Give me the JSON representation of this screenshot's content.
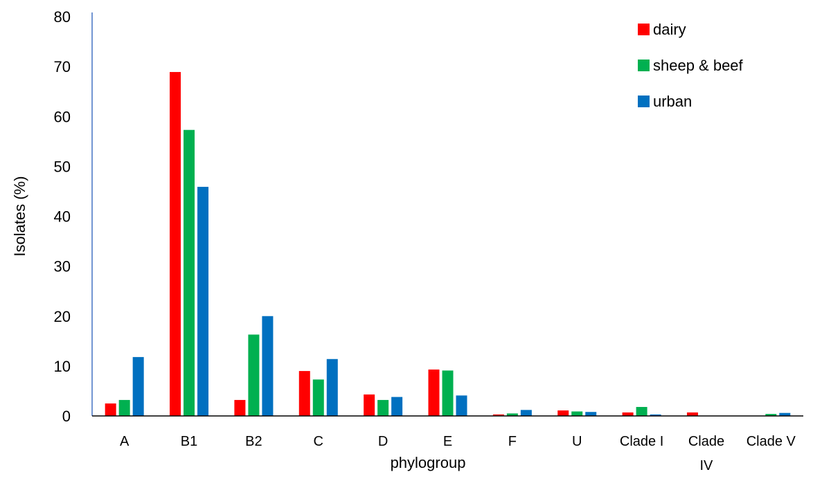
{
  "chart_data": {
    "type": "bar",
    "title": "",
    "xlabel": "phylogroup",
    "ylabel": "Isolates (%)",
    "ylim": [
      0,
      80
    ],
    "yticks": [
      0,
      10,
      20,
      30,
      40,
      50,
      60,
      70,
      80
    ],
    "grid": false,
    "legend_position": "top-right",
    "categories": [
      "A",
      "B1",
      "B2",
      "C",
      "D",
      "E",
      "F",
      "U",
      "Clade I",
      "Clade IV",
      "Clade V"
    ],
    "series": [
      {
        "name": "dairy",
        "color": "#ff0000",
        "values": [
          2.5,
          68.9,
          3.2,
          9.0,
          4.3,
          9.3,
          0.3,
          1.1,
          0.7,
          0.7,
          0.0
        ]
      },
      {
        "name": "sheep & beef",
        "color": "#00b050",
        "values": [
          3.2,
          57.3,
          16.3,
          7.3,
          3.2,
          9.1,
          0.5,
          0.9,
          1.8,
          0.0,
          0.4
        ]
      },
      {
        "name": "urban",
        "color": "#0070c0",
        "values": [
          11.8,
          45.9,
          20.0,
          11.4,
          3.8,
          4.1,
          1.2,
          0.8,
          0.3,
          0.0,
          0.6
        ]
      }
    ]
  }
}
